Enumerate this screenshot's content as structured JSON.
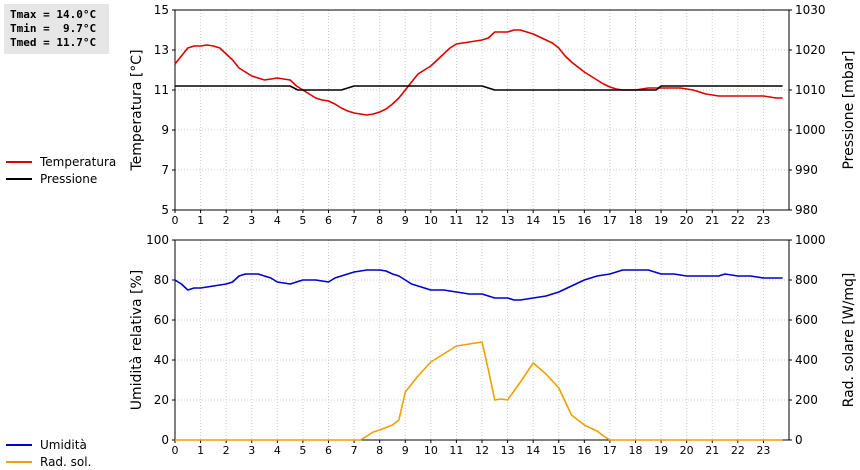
{
  "stats": {
    "lines": [
      "Tmax = 14.0°C",
      "Tmin =  9.7°C",
      "Tmed = 11.7°C"
    ]
  },
  "chart_data": [
    {
      "type": "line",
      "xlim": [
        0,
        24
      ],
      "xticks": [
        "0",
        "1",
        "2",
        "3",
        "4",
        "5",
        "6",
        "7",
        "8",
        "9",
        "10",
        "11",
        "12",
        "13",
        "14",
        "15",
        "16",
        "17",
        "18",
        "19",
        "20",
        "21",
        "22",
        "23"
      ],
      "left_axis": {
        "label": "Temperatura [°C]",
        "ylim": [
          5,
          15
        ],
        "ticks": [
          "5",
          "7",
          "9",
          "11",
          "13",
          "15"
        ]
      },
      "right_axis": {
        "label": "Pressione [mbar]",
        "ylim": [
          980,
          1030
        ],
        "ticks": [
          "980",
          "990",
          "1000",
          "1010",
          "1020",
          "1030"
        ]
      },
      "grid": true,
      "legend_position": "left",
      "series": [
        {
          "name": "Temperatura",
          "axis": "left",
          "color": "#dd0000",
          "x": [
            0,
            0.25,
            0.5,
            0.75,
            1,
            1.25,
            1.5,
            1.75,
            2,
            2.25,
            2.5,
            2.75,
            3,
            3.25,
            3.5,
            3.75,
            4,
            4.25,
            4.5,
            4.75,
            5,
            5.25,
            5.5,
            5.75,
            6,
            6.25,
            6.5,
            6.75,
            7,
            7.25,
            7.5,
            7.75,
            8,
            8.25,
            8.5,
            8.75,
            9,
            9.25,
            9.5,
            9.75,
            10,
            10.25,
            10.5,
            10.75,
            11,
            11.25,
            11.5,
            11.75,
            12,
            12.25,
            12.5,
            12.75,
            13,
            13.25,
            13.5,
            13.75,
            14,
            14.25,
            14.5,
            14.75,
            15,
            15.25,
            15.5,
            15.75,
            16,
            16.25,
            16.5,
            16.75,
            17,
            17.25,
            17.5,
            17.75,
            18,
            18.25,
            18.5,
            18.75,
            19,
            19.25,
            19.5,
            19.75,
            20,
            20.25,
            20.5,
            20.75,
            21,
            21.25,
            21.5,
            21.75,
            22,
            22.25,
            22.5,
            22.75,
            23,
            23.25,
            23.5,
            23.75
          ],
          "values": [
            12.3,
            12.7,
            13.1,
            13.2,
            13.2,
            13.25,
            13.2,
            13.1,
            12.8,
            12.5,
            12.1,
            11.9,
            11.7,
            11.6,
            11.5,
            11.55,
            11.6,
            11.55,
            11.5,
            11.2,
            11.0,
            10.8,
            10.6,
            10.5,
            10.45,
            10.3,
            10.1,
            9.95,
            9.85,
            9.8,
            9.75,
            9.8,
            9.9,
            10.05,
            10.3,
            10.6,
            11.0,
            11.4,
            11.8,
            12.0,
            12.2,
            12.5,
            12.8,
            13.1,
            13.3,
            13.35,
            13.4,
            13.45,
            13.5,
            13.6,
            13.9,
            13.9,
            13.9,
            14.0,
            14.0,
            13.9,
            13.8,
            13.65,
            13.5,
            13.35,
            13.1,
            12.7,
            12.4,
            12.15,
            11.9,
            11.7,
            11.5,
            11.3,
            11.15,
            11.05,
            11.0,
            11.0,
            11.0,
            11.05,
            11.1,
            11.1,
            11.1,
            11.1,
            11.1,
            11.1,
            11.05,
            11.0,
            10.9,
            10.8,
            10.75,
            10.7,
            10.7,
            10.7,
            10.7,
            10.7,
            10.7,
            10.7,
            10.7,
            10.65,
            10.6,
            10.6
          ]
        },
        {
          "name": "Pressione",
          "axis": "right",
          "color": "#000000",
          "x": [
            0,
            4.5,
            4.8,
            6.5,
            7.0,
            12.0,
            12.5,
            18.8,
            19.0,
            23.75
          ],
          "values": [
            1011,
            1011,
            1010,
            1010,
            1011,
            1011,
            1010,
            1010,
            1011,
            1011
          ]
        }
      ]
    },
    {
      "type": "line",
      "xlim": [
        0,
        24
      ],
      "xticks": [
        "0",
        "1",
        "2",
        "3",
        "4",
        "5",
        "6",
        "7",
        "8",
        "9",
        "10",
        "11",
        "12",
        "13",
        "14",
        "15",
        "16",
        "17",
        "18",
        "19",
        "20",
        "21",
        "22",
        "23"
      ],
      "left_axis": {
        "label": "Umidità relativa [%]",
        "ylim": [
          0,
          100
        ],
        "ticks": [
          "0",
          "20",
          "40",
          "60",
          "80",
          "100"
        ]
      },
      "right_axis": {
        "label": "Rad. solare [W/mq]",
        "ylim": [
          0,
          1000
        ],
        "ticks": [
          "0",
          "200",
          "400",
          "600",
          "800",
          "1000"
        ]
      },
      "grid": true,
      "legend_position": "left",
      "series": [
        {
          "name": "Umidità",
          "axis": "left",
          "color": "#0000cc",
          "x": [
            0,
            0.25,
            0.5,
            0.75,
            1,
            1.5,
            2,
            2.25,
            2.5,
            2.75,
            3,
            3.25,
            3.5,
            3.75,
            4,
            4.25,
            4.5,
            4.75,
            5,
            5.25,
            5.5,
            5.75,
            6,
            6.25,
            6.5,
            6.75,
            7,
            7.25,
            7.5,
            7.75,
            8,
            8.25,
            8.5,
            8.75,
            9,
            9.25,
            9.5,
            9.75,
            10,
            10.5,
            11,
            11.5,
            12,
            12.5,
            13,
            13.25,
            13.5,
            14,
            14.5,
            15,
            15.5,
            16,
            16.5,
            17,
            17.5,
            18,
            18.5,
            19,
            19.5,
            20,
            20.5,
            21,
            21.25,
            21.5,
            22,
            22.5,
            23,
            23.5,
            23.75
          ],
          "values": [
            80,
            78,
            75,
            76,
            76,
            77,
            78,
            79,
            82,
            83,
            83,
            83,
            82,
            81,
            79,
            78.5,
            78,
            79,
            80,
            80,
            80,
            79.5,
            79,
            81,
            82,
            83,
            84,
            84.5,
            85,
            85,
            85,
            84.5,
            83,
            82,
            80,
            78,
            77,
            76,
            75,
            75,
            74,
            73,
            73,
            71,
            71,
            70,
            70,
            71,
            72,
            74,
            77,
            80,
            82,
            83,
            85,
            85,
            85,
            83,
            83,
            82,
            82,
            82,
            82,
            83,
            82,
            82,
            81,
            81,
            81
          ]
        },
        {
          "name": "Rad. sol.",
          "axis": "right",
          "color": "#f0a000",
          "x": [
            0,
            1,
            2,
            3,
            4,
            5,
            6,
            7,
            7.25,
            7.5,
            7.75,
            8,
            8.5,
            8.75,
            9,
            9.5,
            10,
            10.5,
            11,
            11.5,
            12,
            12.25,
            12.5,
            12.75,
            13,
            13.5,
            14,
            14.5,
            15,
            15.5,
            16,
            16.5,
            16.75,
            17,
            18,
            19,
            20,
            21,
            22,
            23,
            23.75
          ],
          "values": [
            0,
            0,
            0,
            0,
            0,
            0,
            0,
            0,
            0,
            20,
            40,
            50,
            75,
            100,
            240,
            320,
            390,
            430,
            470,
            480,
            490,
            350,
            200,
            205,
            200,
            290,
            385,
            330,
            260,
            125,
            75,
            45,
            20,
            0,
            0,
            0,
            0,
            0,
            0,
            0,
            0
          ]
        }
      ]
    }
  ]
}
